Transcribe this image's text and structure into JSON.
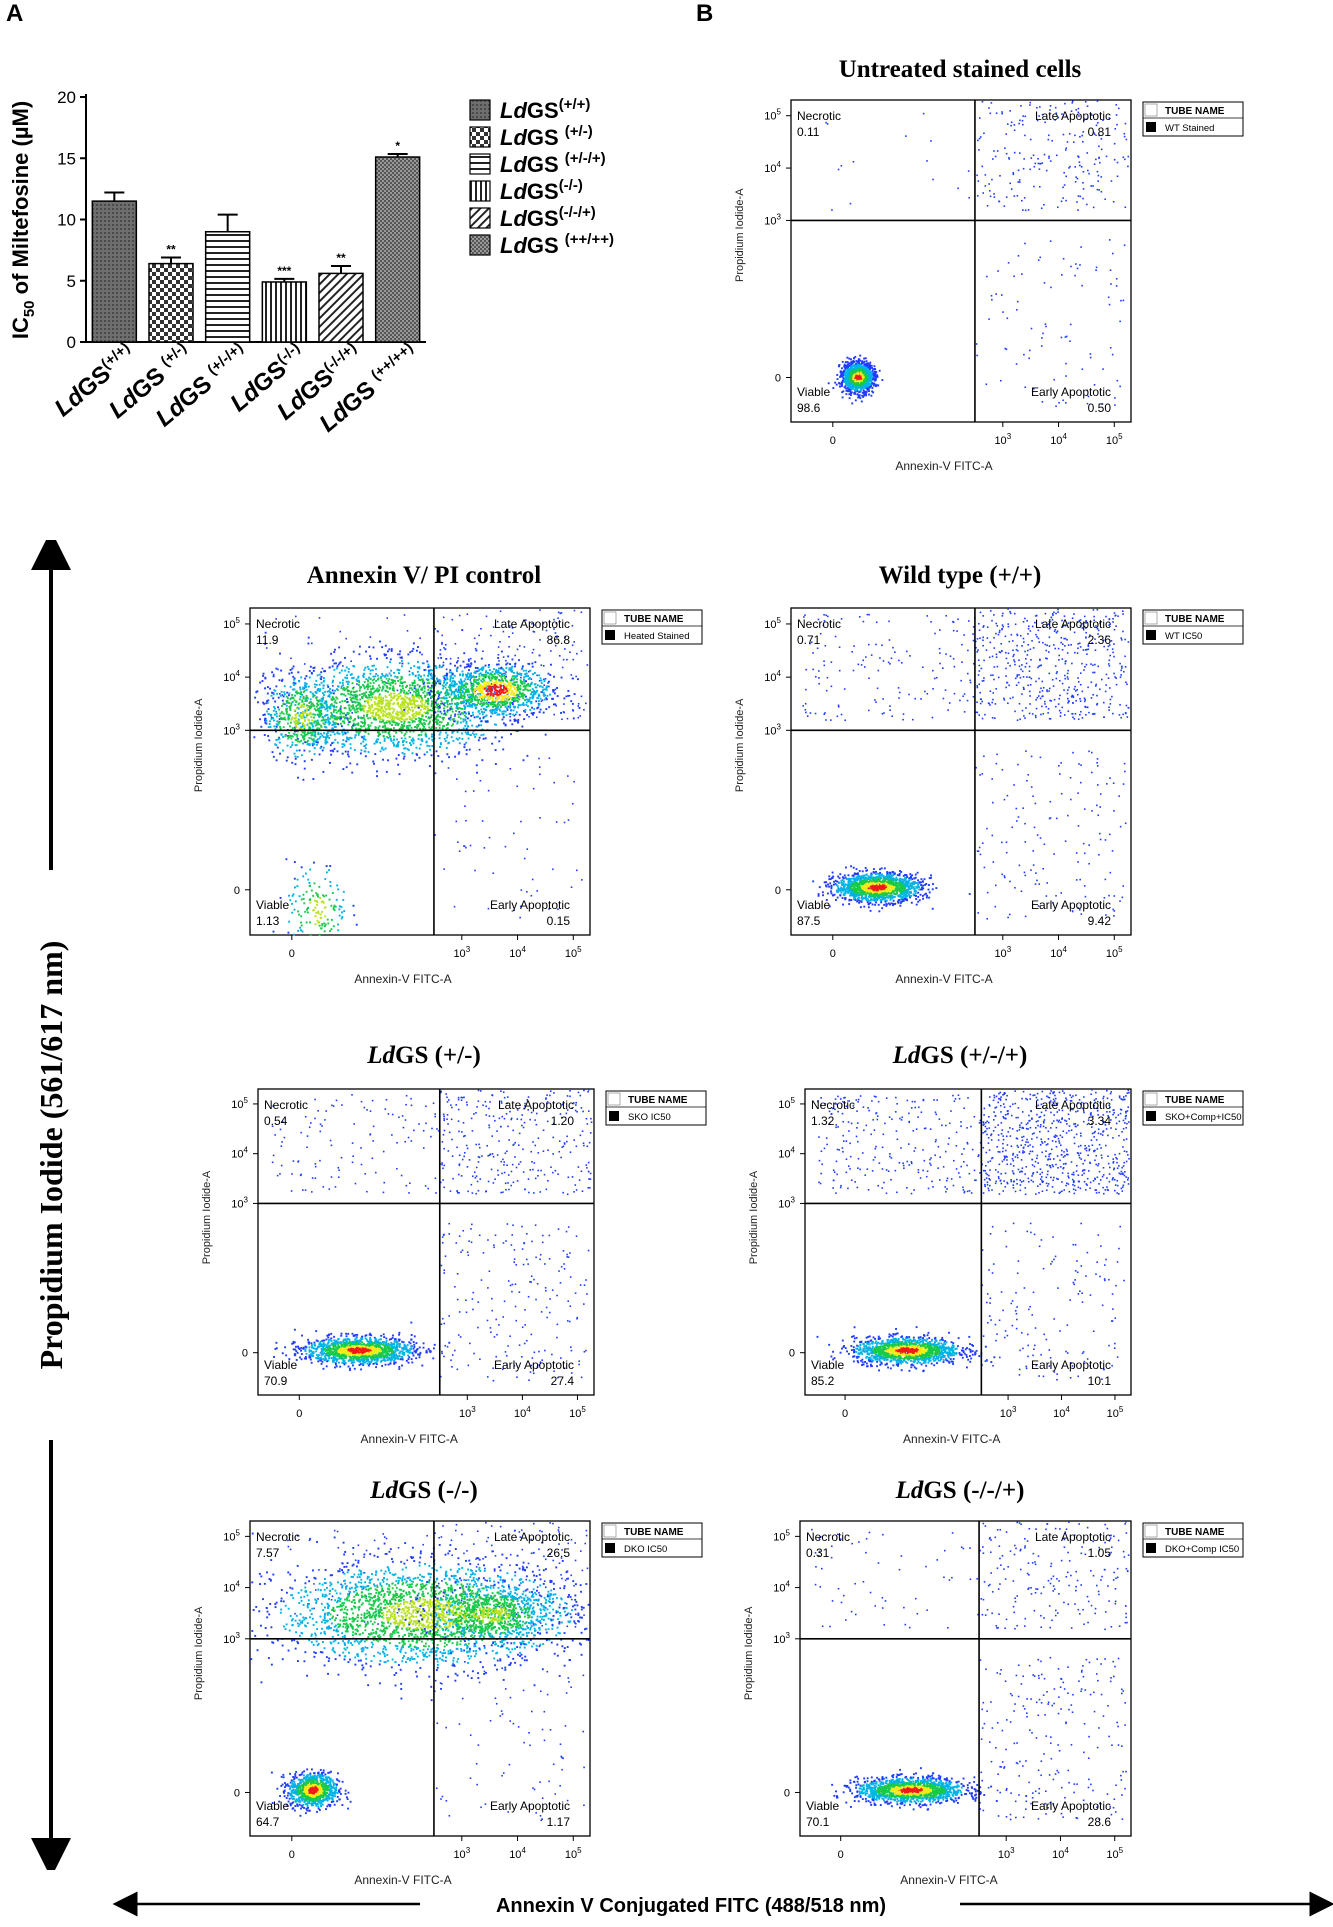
{
  "panels": {
    "a": "A",
    "b": "B"
  },
  "chart_data": [
    {
      "type": "bar",
      "id": "ic50",
      "ylabel_prefix": "IC",
      "ylabel_sub": "50",
      "ylabel_rest": " of Miltefosine (µM)",
      "ylim": [
        0,
        20
      ],
      "yticks": [
        "0",
        "5",
        "10",
        "15",
        "20"
      ],
      "categories": [
        {
          "base": "Ld",
          "rest": "GS",
          "sup": "(+/+)"
        },
        {
          "base": "Ld",
          "rest": "GS ",
          "sup": "(+/-)"
        },
        {
          "base": "Ld",
          "rest": "GS ",
          "sup": "(+/-/+)"
        },
        {
          "base": "Ld",
          "rest": "GS",
          "sup": "(-/-)"
        },
        {
          "base": "Ld",
          "rest": "GS",
          "sup": "(-/-/+)"
        },
        {
          "base": "Ld",
          "rest": "GS ",
          "sup": "(++/++)"
        }
      ],
      "values": [
        11.5,
        6.4,
        9.0,
        4.9,
        5.6,
        15.1
      ],
      "errors": [
        0.7,
        0.5,
        1.4,
        0.25,
        0.6,
        0.25
      ],
      "significance": [
        "",
        "**",
        "",
        "***",
        "**",
        "*"
      ],
      "patterns": [
        "dark",
        "check",
        "hstripe",
        "vstripe",
        "diag",
        "dots"
      ],
      "legend_entries": [
        {
          "base": "Ld",
          "rest": "GS",
          "sup": "(+/+)"
        },
        {
          "base": "Ld",
          "rest": "GS ",
          "sup": "(+/-)"
        },
        {
          "base": "Ld",
          "rest": "GS ",
          "sup": "(+/-/+)"
        },
        {
          "base": "Ld",
          "rest": "GS",
          "sup": "(-/-)"
        },
        {
          "base": "Ld",
          "rest": "GS",
          "sup": "(-/-/+)"
        },
        {
          "base": "Ld",
          "rest": "GS ",
          "sup": "(++/++)"
        }
      ]
    }
  ],
  "flow_common": {
    "xlabel": "Annexin-V FITC-A",
    "ylabel": "Propidium Iodide-A",
    "x_ticks": [
      "0",
      "10",
      "10",
      "10"
    ],
    "x_tick_exp": [
      "",
      "3",
      "4",
      "5"
    ],
    "y_ticks": [
      "0",
      "10",
      "10",
      "10"
    ],
    "y_tick_exp": [
      "",
      "3",
      "4",
      "5"
    ],
    "legend_header": "TUBE NAME",
    "q_names": [
      "Necrotic",
      "Late Apoptotic",
      "Viable",
      "Early Apoptotic"
    ]
  },
  "flow_plots": [
    {
      "title": "Untreated stained cells",
      "tube": "WT Stained",
      "necrotic": "0.11",
      "late": "0.81",
      "viable": "98.6",
      "early": "0.50",
      "clusters": [
        {
          "x": 0.1,
          "y": -0.1,
          "n": 1500,
          "sx": 0.12,
          "sy": 0.12,
          "hot": true
        }
      ],
      "scatter": {
        "ur": 220,
        "ul": 15,
        "lr": 90
      }
    },
    {
      "title": "Annexin V/ PI control",
      "tube": "Heated Stained",
      "necrotic": "11.9",
      "late": "86.8",
      "viable": "1.13",
      "early": "0.15",
      "clusters": [
        {
          "x": 1.6,
          "y": 1.0,
          "n": 2000,
          "sx": 0.9,
          "sy": 0.4,
          "hot": false
        },
        {
          "x": 3.9,
          "y": 1.35,
          "n": 900,
          "sx": 0.45,
          "sy": 0.22,
          "hot": true
        },
        {
          "x": -0.1,
          "y": 0.8,
          "n": 500,
          "sx": 0.3,
          "sy": 0.35,
          "hot": false
        },
        {
          "x": 0.1,
          "y": -0.6,
          "n": 160,
          "sx": 0.25,
          "sy": 0.4,
          "hot": false
        }
      ],
      "scatter": {
        "ur": 200,
        "ul": 60,
        "lr": 60
      }
    },
    {
      "title": "Wild type (+/+)",
      "tube": "WT IC50",
      "necrotic": "0.71",
      "late": "2.36",
      "viable": "87.5",
      "early": "9.42",
      "clusters": [
        {
          "x": 0.35,
          "y": -0.05,
          "n": 1500,
          "sx": 0.35,
          "sy": 0.12,
          "hot": true
        }
      ],
      "scatter": {
        "ur": 500,
        "ul": 150,
        "lr": 150
      }
    },
    {
      "title_prefix": "Ld",
      "title": "GS (+/-)",
      "tube": "SKO IC50",
      "necrotic": "0.54",
      "late": "1.20",
      "viable": "70.9",
      "early": "27.4",
      "clusters": [
        {
          "x": 0.55,
          "y": -0.05,
          "n": 1400,
          "sx": 0.45,
          "sy": 0.12,
          "hot": true
        }
      ],
      "scatter": {
        "ur": 300,
        "ul": 120,
        "lr": 200
      }
    },
    {
      "title_prefix": "Ld",
      "title": "GS (+/-/+)",
      "tube": "SKO+Comp+IC50",
      "necrotic": "1.32",
      "late": "3.34",
      "viable": "85.2",
      "early": "10.1",
      "clusters": [
        {
          "x": 0.6,
          "y": -0.05,
          "n": 1400,
          "sx": 0.45,
          "sy": 0.12,
          "hot": true
        }
      ],
      "scatter": {
        "ur": 700,
        "ul": 250,
        "lr": 150
      }
    },
    {
      "title_prefix": "Ld",
      "title": "GS (-/-)",
      "tube": "DKO IC50",
      "necrotic": "7.57",
      "late": "26.5",
      "viable": "64.7",
      "early": "1.17",
      "clusters": [
        {
          "x": 2.3,
          "y": 1.05,
          "n": 2500,
          "sx": 1.2,
          "sy": 0.45,
          "hot": false
        },
        {
          "x": 3.8,
          "y": 1.05,
          "n": 600,
          "sx": 0.5,
          "sy": 0.25,
          "hot": false
        },
        {
          "x": 0.05,
          "y": -0.05,
          "n": 900,
          "sx": 0.2,
          "sy": 0.15,
          "hot": true
        }
      ],
      "scatter": {
        "ur": 150,
        "ul": 50,
        "lr": 80
      }
    },
    {
      "title_prefix": "Ld",
      "title": "GS (-/-/+)",
      "tube": "DKO+Comp IC50",
      "necrotic": "0.31",
      "late": "1.05",
      "viable": "70.1",
      "early": "28.6",
      "clusters": [
        {
          "x": 0.7,
          "y": -0.05,
          "n": 1400,
          "sx": 0.45,
          "sy": 0.11,
          "hot": true
        }
      ],
      "scatter": {
        "ur": 200,
        "ul": 60,
        "lr": 220
      }
    }
  ],
  "axis_big": {
    "ylabel": "Propidium Iodide (561/617 nm)",
    "xlabel": "Annexin V Conjugated FITC (488/518 nm)"
  }
}
